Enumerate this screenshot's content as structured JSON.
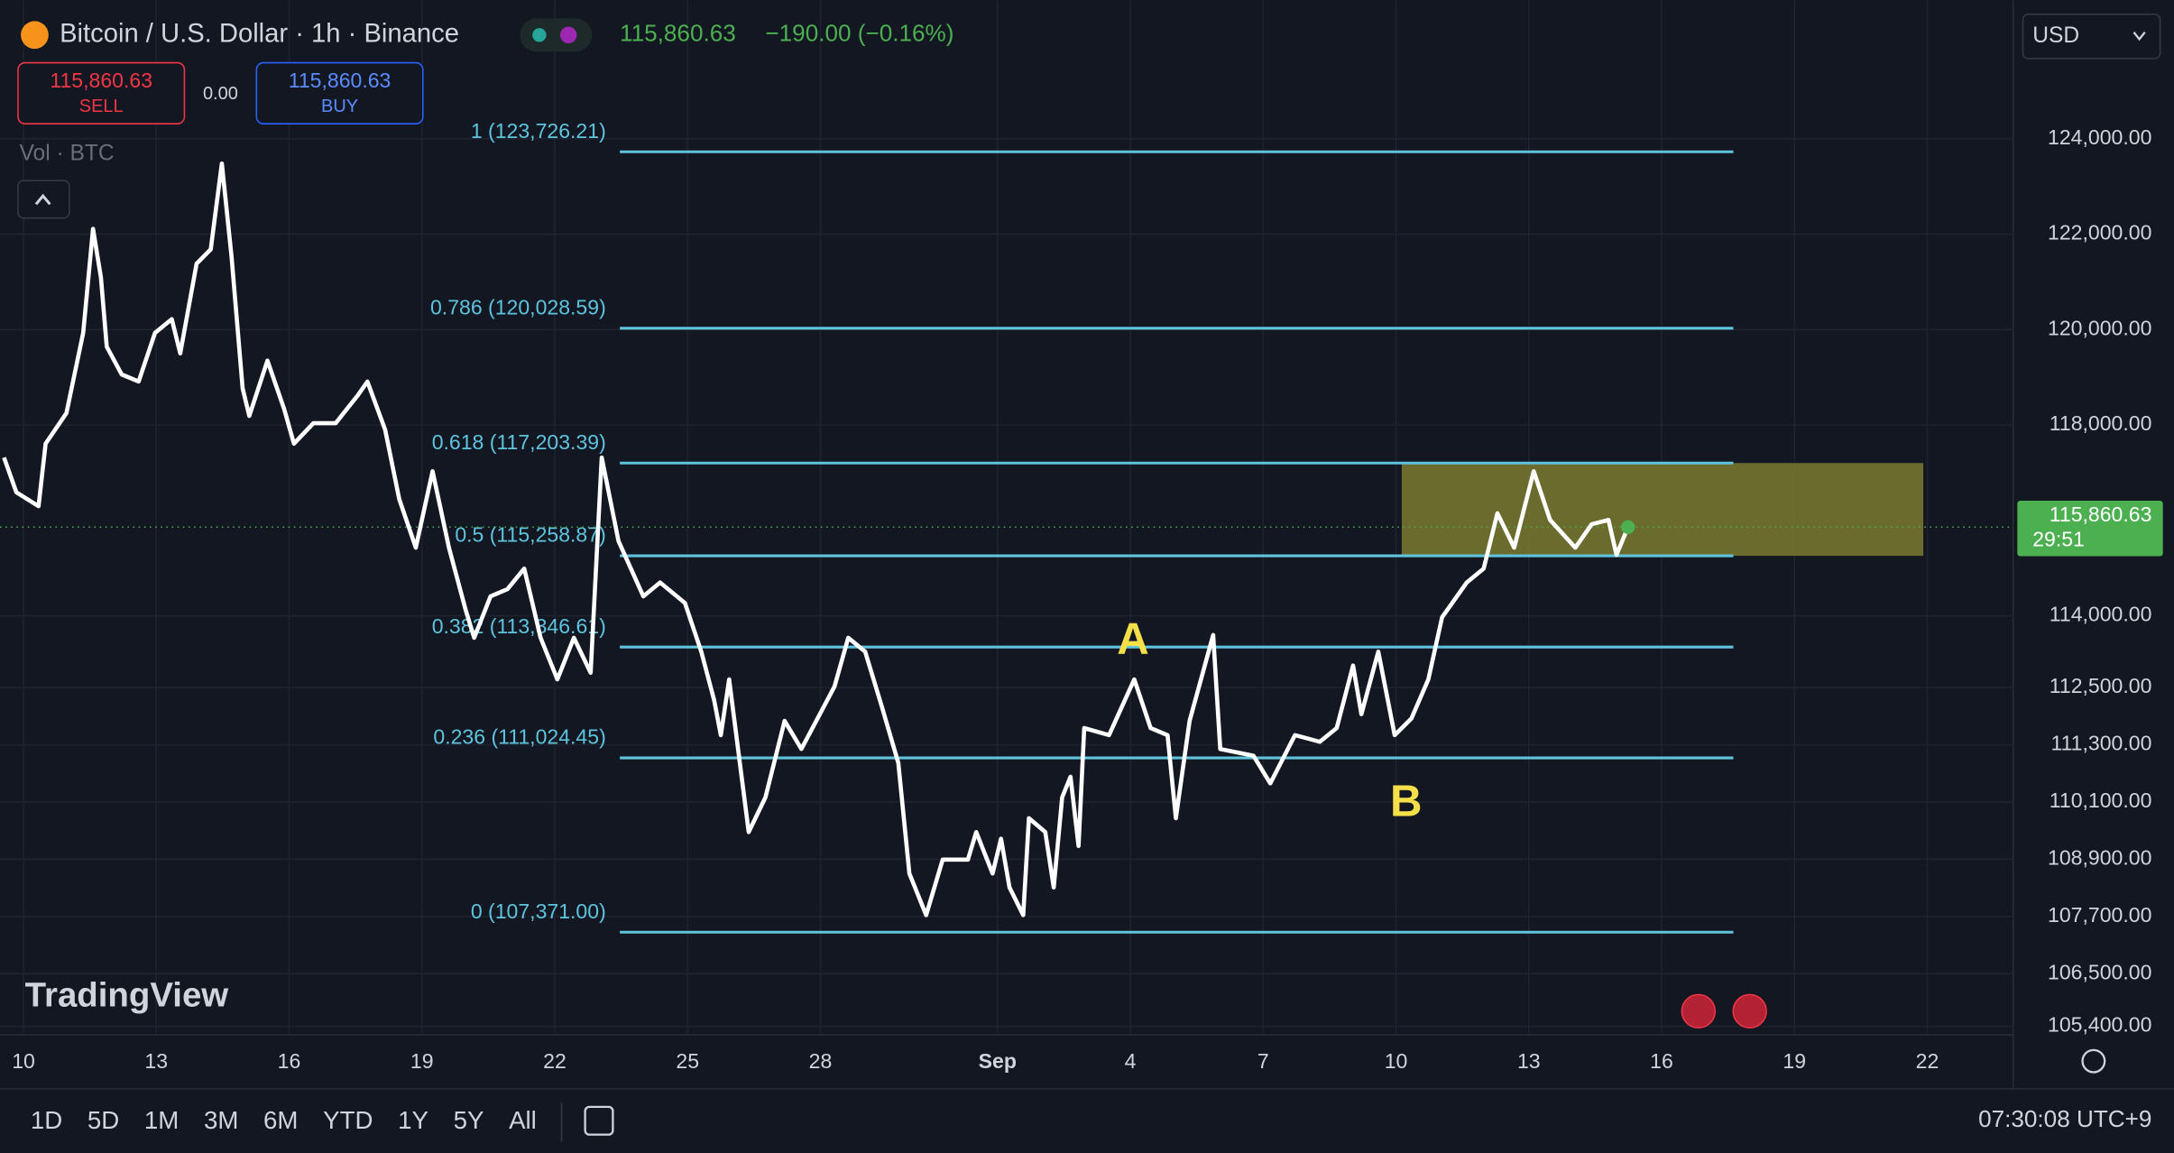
{
  "header": {
    "symbol": "Bitcoin / U.S. Dollar · 1h · Binance",
    "price": "115,860.63",
    "change": "−190.00 (−0.16%)",
    "sell_price": "115,860.63",
    "sell": "SELL",
    "spread": "0.00",
    "buy_price": "115,860.63",
    "buy": "BUY",
    "volume": "Vol · BTC",
    "currency": "USD"
  },
  "logo": "TradingView",
  "toolbar": {
    "ranges": [
      "1D",
      "5D",
      "1M",
      "3M",
      "6M",
      "YTD",
      "1Y",
      "5Y",
      "All"
    ],
    "clock": "07:30:08 UTC+9"
  },
  "chart_data": {
    "type": "line",
    "color": "#ffffff",
    "x": [
      -0.44,
      -0.16,
      0.34,
      0.5,
      0.97,
      1.35,
      1.57,
      1.75,
      1.88,
      2.22,
      2.6,
      2.97,
      3.35,
      3.54,
      3.91,
      4.23,
      4.48,
      4.7,
      4.95,
      5.1,
      5.51,
      5.89,
      6.11,
      6.55,
      7.05,
      7.55,
      7.77,
      8.17,
      8.49,
      8.86,
      9.24,
      9.61,
      9.99,
      10.18,
      10.55,
      10.93,
      11.31,
      11.68,
      12.06,
      12.43,
      12.81,
      13.06,
      13.44,
      14.0,
      14.38,
      14.94,
      15.31,
      15.6,
      15.75,
      15.94,
      16.38,
      16.76,
      17.19,
      17.57,
      18.32,
      18.63,
      19.01,
      19.39,
      19.76,
      20.01,
      20.39,
      20.76,
      21.33,
      21.52,
      21.89,
      22.08,
      22.27,
      22.58,
      22.71,
      23.08,
      23.27,
      23.46,
      23.65,
      23.83,
      23.96,
      24.52,
      25.09,
      25.46,
      25.84,
      26.03,
      26.34,
      26.87,
      27.03,
      27.78,
      28.16,
      28.72,
      29.28,
      29.66,
      30.03,
      30.22,
      30.6,
      30.97,
      31.35,
      31.73,
      32.04,
      32.6,
      32.98,
      33.29,
      33.67,
      34.11,
      34.48,
      35.05,
      35.42,
      35.8,
      35.98,
      36.24
    ],
    "values": [
      117320,
      116590,
      116300,
      117610,
      118250,
      119930,
      122110,
      121090,
      119640,
      119060,
      118910,
      119930,
      120220,
      119500,
      121380,
      121680,
      123480,
      121530,
      118770,
      118190,
      119350,
      118330,
      117610,
      118040,
      118040,
      118620,
      118910,
      117900,
      116440,
      115430,
      117030,
      115430,
      114120,
      113540,
      114410,
      114560,
      114990,
      113540,
      112670,
      113540,
      112810,
      117320,
      115570,
      114410,
      114700,
      114270,
      113250,
      112230,
      111500,
      112670,
      109470,
      110200,
      111800,
      111210,
      112520,
      113540,
      113250,
      112090,
      110920,
      108600,
      107730,
      108890,
      108890,
      109470,
      108600,
      109330,
      108310,
      107730,
      109760,
      109470,
      108310,
      110200,
      110630,
      109180,
      111650,
      111500,
      112670,
      111650,
      111500,
      109760,
      111800,
      113600,
      111210,
      111070,
      110490,
      111500,
      111360,
      111650,
      112960,
      111940,
      113250,
      111500,
      111850,
      112670,
      113970,
      114700,
      114990,
      116150,
      115430,
      117030,
      116010,
      115430,
      115920,
      116010,
      115280,
      115860.63
    ],
    "xlim": [
      -0.53,
      44.94
    ],
    "ylim": [
      105250,
      126900
    ],
    "xticks": [
      {
        "value": 0,
        "label": "10"
      },
      {
        "value": 3,
        "label": "13"
      },
      {
        "value": 6,
        "label": "16"
      },
      {
        "value": 9,
        "label": "19"
      },
      {
        "value": 12,
        "label": "22"
      },
      {
        "value": 15,
        "label": "25"
      },
      {
        "value": 18,
        "label": "28"
      },
      {
        "value": 22,
        "label": "Sep"
      },
      {
        "value": 25,
        "label": "4"
      },
      {
        "value": 28,
        "label": "7"
      },
      {
        "value": 31,
        "label": "10"
      },
      {
        "value": 34,
        "label": "13"
      },
      {
        "value": 37,
        "label": "16"
      },
      {
        "value": 40,
        "label": "19"
      },
      {
        "value": 43,
        "label": "22"
      }
    ],
    "yticks": [
      {
        "value": 124000,
        "label": "124,000.00"
      },
      {
        "value": 122000,
        "label": "122,000.00"
      },
      {
        "value": 120000,
        "label": "120,000.00"
      },
      {
        "value": 118000,
        "label": "118,000.00"
      },
      {
        "value": 114000,
        "label": "114,000.00"
      },
      {
        "value": 112500,
        "label": "112,500.00"
      },
      {
        "value": 111300,
        "label": "111,300.00"
      },
      {
        "value": 110100,
        "label": "110,100.00"
      },
      {
        "value": 108900,
        "label": "108,900.00"
      },
      {
        "value": 107700,
        "label": "107,700.00"
      },
      {
        "value": 106500,
        "label": "106,500.00"
      },
      {
        "value": 105400,
        "label": "105,400.00"
      }
    ],
    "grid": true,
    "fib_color": "#5ec4de",
    "fib_x": [
      13.47,
      38.62
    ],
    "fib": [
      {
        "value": 123726.21,
        "label": "1 (123,726.21)"
      },
      {
        "value": 120028.59,
        "label": "0.786 (120,028.59)"
      },
      {
        "value": 117203.39,
        "label": "0.618 (117,203.39)"
      },
      {
        "value": 115258.87,
        "label": "0.5 (115,258.87)"
      },
      {
        "value": 113346.61,
        "label": "0.382 (113,346.61)"
      },
      {
        "value": 111024.45,
        "label": "0.236 (111,024.45)"
      },
      {
        "value": 107371.0,
        "label": "0 (107,371.00)"
      }
    ],
    "zone": {
      "x": [
        31.13,
        42.91
      ],
      "y": [
        115258.87,
        117203.39
      ],
      "color": "#7a7a2e"
    },
    "annotations": [
      {
        "text": "A",
        "x": 25.06,
        "y": 113450
      },
      {
        "text": "B",
        "x": 31.23,
        "y": 110050
      }
    ],
    "annotation_color": "#f5e04a",
    "last_price": {
      "value": 115860.63,
      "label": "115,860.63",
      "countdown": "29:51",
      "color": "#4caf50"
    }
  }
}
